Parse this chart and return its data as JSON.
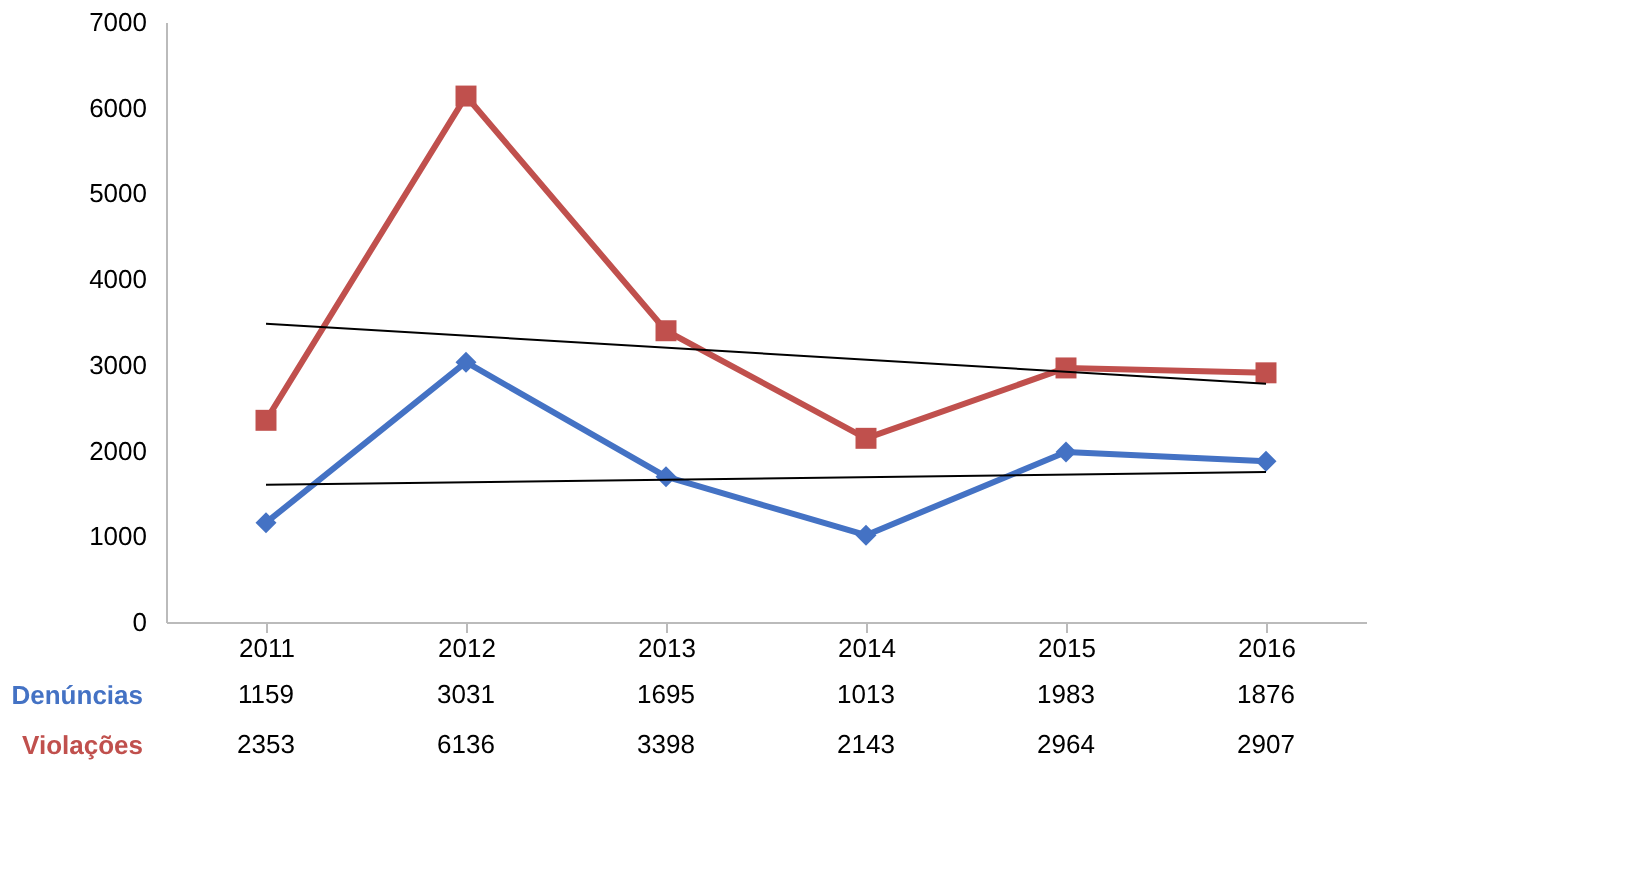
{
  "chart_data": {
    "type": "line",
    "categories": [
      "2011",
      "2012",
      "2013",
      "2014",
      "2015",
      "2016"
    ],
    "series": [
      {
        "name": "Denúncias",
        "color": "#4472c4",
        "marker": "diamond",
        "values": [
          1159,
          3031,
          1695,
          1013,
          1983,
          1876
        ],
        "value_labels": [
          "1159",
          "3031",
          "1695",
          "1013",
          "1983",
          "1876"
        ]
      },
      {
        "name": "Violações",
        "color": "#c0504d",
        "marker": "square",
        "values": [
          2353,
          6136,
          3398,
          2143,
          2964,
          2907
        ],
        "value_labels": [
          "2353",
          "6136",
          "3398",
          "2143",
          "2964",
          "2907"
        ]
      },
      {
        "type": "line",
        "color": "#000000",
        "marker": "none",
        "values": [
          1600,
          null,
          null,
          null,
          null,
          1750
        ]
      },
      {
        "type": "line",
        "color": "#000000",
        "marker": "none",
        "values": [
          3480,
          null,
          null,
          null,
          null,
          2780
        ]
      }
    ],
    "ylim": [
      0,
      7000
    ],
    "yticks": [
      0,
      1000,
      2000,
      3000,
      4000,
      5000,
      6000,
      7000
    ],
    "grid": false
  }
}
